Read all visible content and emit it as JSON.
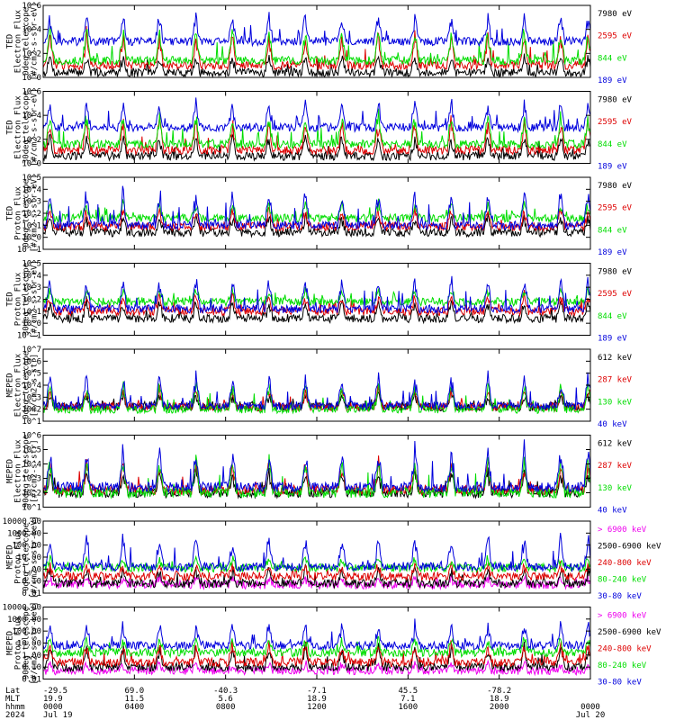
{
  "chart_data": [
    {
      "type": "line",
      "ylabel_lines": [
        "TED",
        "Electron Flux",
        "0deg telescope",
        "[#/cm2-s-str-eV]"
      ],
      "yscale": "log",
      "yticks": [
        "10^0",
        "10^2",
        "10^4",
        "10^6"
      ],
      "ylim_exp": [
        0,
        6
      ],
      "series": [
        {
          "name": "7980 eV",
          "color": "#000000",
          "base_exp": 0.4,
          "peak_exp": 2.0
        },
        {
          "name": "2595 eV",
          "color": "#dd0000",
          "base_exp": 1.0,
          "peak_exp": 4.0
        },
        {
          "name": "844 eV",
          "color": "#00dd00",
          "base_exp": 1.4,
          "peak_exp": 4.5
        },
        {
          "name": "189 eV",
          "color": "#0000dd",
          "base_exp": 3.0,
          "peak_exp": 5.5
        }
      ]
    },
    {
      "type": "line",
      "ylabel_lines": [
        "TED",
        "Electron Flux",
        "30deg telescope",
        "[#/cm2-s-str-eV]"
      ],
      "yscale": "log",
      "yticks": [
        "10^0",
        "10^2",
        "10^4",
        "10^6"
      ],
      "ylim_exp": [
        0,
        6
      ],
      "series": [
        {
          "name": "7980 eV",
          "color": "#000000",
          "base_exp": 0.6,
          "peak_exp": 2.5
        },
        {
          "name": "2595 eV",
          "color": "#dd0000",
          "base_exp": 1.1,
          "peak_exp": 4.0
        },
        {
          "name": "844 eV",
          "color": "#00dd00",
          "base_exp": 1.6,
          "peak_exp": 4.5
        },
        {
          "name": "189 eV",
          "color": "#0000dd",
          "base_exp": 3.0,
          "peak_exp": 5.5
        }
      ]
    },
    {
      "type": "line",
      "ylabel_lines": [
        "TED",
        "Proton Flux",
        "0deg telescope",
        "[#/cm2-s-str-eV]"
      ],
      "yscale": "log",
      "yticks": [
        "10^-1",
        "10^0",
        "10^1",
        "10^2",
        "10^3",
        "10^4",
        "10^5"
      ],
      "ylim_exp": [
        -1,
        5
      ],
      "series": [
        {
          "name": "7980 eV",
          "color": "#000000",
          "base_exp": 0.4,
          "peak_exp": 2.0
        },
        {
          "name": "2595 eV",
          "color": "#dd0000",
          "base_exp": 0.9,
          "peak_exp": 2.6
        },
        {
          "name": "844 eV",
          "color": "#00dd00",
          "base_exp": 1.6,
          "peak_exp": 3.0
        },
        {
          "name": "189 eV",
          "color": "#0000dd",
          "base_exp": 1.0,
          "peak_exp": 4.5
        }
      ]
    },
    {
      "type": "line",
      "ylabel_lines": [
        "TED",
        "Proton Flux",
        "30deg telescope",
        "[#/cm2-s-str-eV]"
      ],
      "yscale": "log",
      "yticks": [
        "10^-1",
        "10^0",
        "10^1",
        "10^2",
        "10^3",
        "10^4",
        "10^5"
      ],
      "ylim_exp": [
        -1,
        5
      ],
      "series": [
        {
          "name": "7980 eV",
          "color": "#000000",
          "base_exp": 0.4,
          "peak_exp": 2.0
        },
        {
          "name": "2595 eV",
          "color": "#dd0000",
          "base_exp": 1.0,
          "peak_exp": 2.6
        },
        {
          "name": "844 eV",
          "color": "#00dd00",
          "base_exp": 1.8,
          "peak_exp": 3.0
        },
        {
          "name": "189 eV",
          "color": "#0000dd",
          "base_exp": 1.2,
          "peak_exp": 4.2
        }
      ]
    },
    {
      "type": "line",
      "ylabel_lines": [
        "MEPED",
        "Electron Flux",
        "0deg telescope",
        "[#/cm2-s-str]"
      ],
      "yscale": "log",
      "yticks": [
        "10^1",
        "10^2",
        "10^3",
        "10^4",
        "10^5",
        "10^6",
        "10^7"
      ],
      "ylim_exp": [
        1,
        7
      ],
      "series": [
        {
          "name": "612 keV",
          "color": "#000000",
          "base_exp": 2.2,
          "peak_exp": 3.5
        },
        {
          "name": "287 keV",
          "color": "#dd0000",
          "base_exp": 2.2,
          "peak_exp": 4.2
        },
        {
          "name": "130 keV",
          "color": "#00dd00",
          "base_exp": 2.0,
          "peak_exp": 4.5
        },
        {
          "name": "40 keV",
          "color": "#0000dd",
          "base_exp": 2.3,
          "peak_exp": 5.2
        }
      ]
    },
    {
      "type": "line",
      "ylabel_lines": [
        "MEPED",
        "Electron Flux",
        "90deg telescope",
        "[#/cm2-s-str]"
      ],
      "yscale": "log",
      "yticks": [
        "10^1",
        "10^2",
        "10^3",
        "10^4",
        "10^5",
        "10^6"
      ],
      "ylim_exp": [
        1,
        6
      ],
      "series": [
        {
          "name": "612 keV",
          "color": "#000000",
          "base_exp": 2.0,
          "peak_exp": 3.8
        },
        {
          "name": "287 keV",
          "color": "#dd0000",
          "base_exp": 2.2,
          "peak_exp": 4.5
        },
        {
          "name": "130 keV",
          "color": "#00dd00",
          "base_exp": 2.0,
          "peak_exp": 4.8
        },
        {
          "name": "40 keV",
          "color": "#0000dd",
          "base_exp": 2.4,
          "peak_exp": 5.5
        }
      ]
    },
    {
      "type": "line",
      "ylabel_lines": [
        "MEPED",
        "Proton Flux",
        "0deg telescope",
        "[#/cm2-s-str-keV]"
      ],
      "yscale": "log",
      "yticks": [
        "0.01",
        "0.10",
        "1.00",
        "10.00",
        "100.00",
        "1000.00",
        "10000.00"
      ],
      "ylim_exp": [
        -2,
        4
      ],
      "series": [
        {
          "name": "> 6900 keV",
          "color": "#ee00ee",
          "base_exp": -1.3,
          "peak_exp": -0.6
        },
        {
          "name": "2500-6900 keV",
          "color": "#000000",
          "base_exp": -1.2,
          "peak_exp": 0.3
        },
        {
          "name": "240-800 keV",
          "color": "#dd0000",
          "base_exp": -0.6,
          "peak_exp": 0.5
        },
        {
          "name": "80-240 keV",
          "color": "#00dd00",
          "base_exp": 0.1,
          "peak_exp": 1.0
        },
        {
          "name": "30-80 keV",
          "color": "#0000dd",
          "base_exp": 0.2,
          "peak_exp": 3.2
        }
      ]
    },
    {
      "type": "line",
      "ylabel_lines": [
        "MEPED",
        "Proton Flux",
        "90deg telescope",
        "[#/cm2-s-str-keV]"
      ],
      "yscale": "log",
      "yticks": [
        "0.01",
        "0.10",
        "1.00",
        "10.00",
        "100.00",
        "1000.00",
        "10000.00"
      ],
      "ylim_exp": [
        -2,
        4
      ],
      "series": [
        {
          "name": "> 6900 keV",
          "color": "#ee00ee",
          "base_exp": -1.3,
          "peak_exp": -0.6
        },
        {
          "name": "2500-6900 keV",
          "color": "#000000",
          "base_exp": -1.0,
          "peak_exp": 1.0
        },
        {
          "name": "240-800 keV",
          "color": "#dd0000",
          "base_exp": -0.6,
          "peak_exp": 1.2
        },
        {
          "name": "80-240 keV",
          "color": "#00dd00",
          "base_exp": 0.2,
          "peak_exp": 1.6
        },
        {
          "name": "30-80 keV",
          "color": "#0000dd",
          "base_exp": 0.8,
          "peak_exp": 2.8
        }
      ]
    }
  ],
  "x_axis": {
    "row_labels": [
      "Lat",
      "MLT",
      "hhmm",
      "2024"
    ],
    "ticks": [
      {
        "lat": "-29.5",
        "mlt": "19.9",
        "hhmm": "0000",
        "date": "Jul 19"
      },
      {
        "lat": "69.0",
        "mlt": "11.5",
        "hhmm": "0400",
        "date": ""
      },
      {
        "lat": "-40.3",
        "mlt": "5.6",
        "hhmm": "0800",
        "date": ""
      },
      {
        "lat": "-7.1",
        "mlt": "18.9",
        "hhmm": "1200",
        "date": ""
      },
      {
        "lat": "45.5",
        "mlt": "7.1",
        "hhmm": "1600",
        "date": ""
      },
      {
        "lat": "-78.2",
        "mlt": "18.9",
        "hhmm": "2000",
        "date": ""
      },
      {
        "lat": "",
        "mlt": "",
        "hhmm": "0000",
        "date": "Jul 20"
      }
    ],
    "pass_hours": [
      0.3,
      1.9,
      3.5,
      5.1,
      6.7,
      8.3,
      9.9,
      11.5,
      13.1,
      14.7,
      16.3,
      17.9,
      19.5,
      21.1,
      22.7,
      23.9
    ]
  }
}
